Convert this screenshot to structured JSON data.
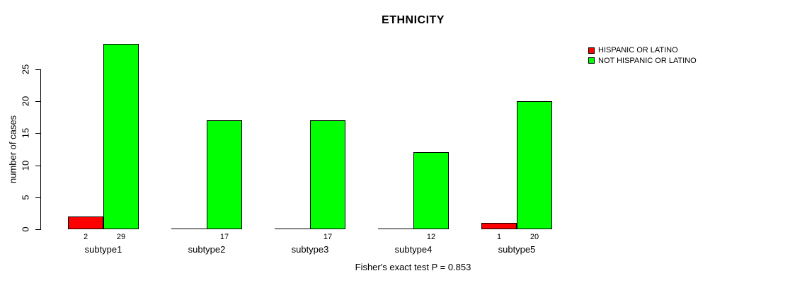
{
  "chart_data": {
    "type": "bar",
    "layout": "grouped",
    "title": "ETHNICITY",
    "ylabel": "number of cases",
    "xlabel": "",
    "categories": [
      "subtype1",
      "subtype2",
      "subtype3",
      "subtype4",
      "subtype5"
    ],
    "series": [
      {
        "name": "HISPANIC OR LATINO",
        "color": "#FF0000",
        "values": [
          2,
          0,
          0,
          0,
          1
        ]
      },
      {
        "name": "NOT HISPANIC OR LATINO",
        "color": "#00FF00",
        "values": [
          29,
          17,
          17,
          12,
          20
        ]
      }
    ],
    "bar_value_labels": [
      [
        "2",
        "29"
      ],
      [
        "",
        "17"
      ],
      [
        "",
        "17"
      ],
      [
        "",
        "12"
      ],
      [
        "1",
        "20"
      ]
    ],
    "yticks": [
      0,
      5,
      10,
      15,
      20,
      25
    ],
    "ylim": [
      0,
      29
    ],
    "grid": false,
    "legend_position": "top-right",
    "annotation": "Fisher's exact test P = 0.853",
    "bar_border_color": "#000000",
    "axis_color": "#000000",
    "background_color": "#FFFFFF"
  }
}
